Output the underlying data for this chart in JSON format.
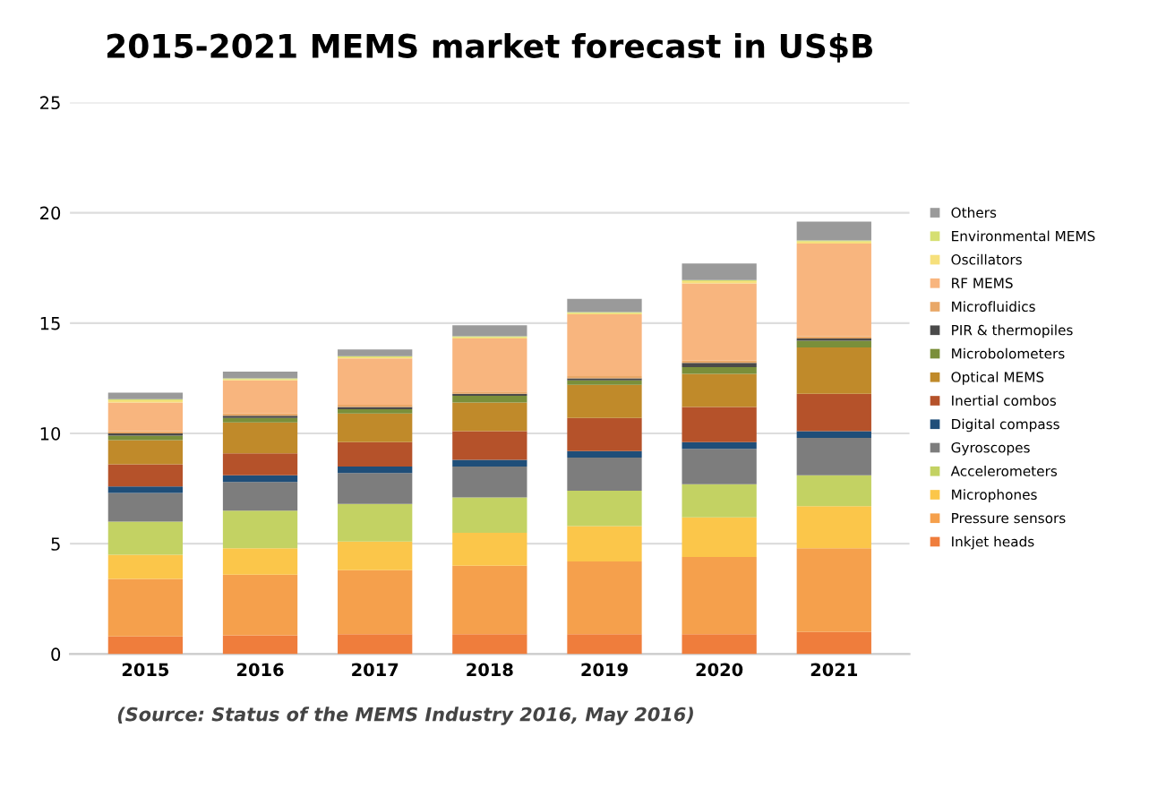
{
  "chart_data": {
    "type": "bar",
    "stacked": true,
    "title": "2015-2021 MEMS market forecast in US$B",
    "categories": [
      "2015",
      "2016",
      "2017",
      "2018",
      "2019",
      "2020",
      "2021"
    ],
    "series": [
      {
        "name": "Inkjet heads",
        "color": "#ef7d3c",
        "values": [
          0.8,
          0.85,
          0.9,
          0.9,
          0.9,
          0.9,
          1.0
        ]
      },
      {
        "name": "Pressure sensors",
        "color": "#f5a04c",
        "values": [
          2.6,
          2.75,
          2.9,
          3.1,
          3.3,
          3.5,
          3.8
        ]
      },
      {
        "name": "Microphones",
        "color": "#fbc64a",
        "values": [
          1.1,
          1.2,
          1.3,
          1.5,
          1.6,
          1.8,
          1.9
        ]
      },
      {
        "name": "Accelerometers",
        "color": "#c3d263",
        "values": [
          1.5,
          1.7,
          1.7,
          1.6,
          1.6,
          1.5,
          1.4
        ]
      },
      {
        "name": "Gyroscopes",
        "color": "#7d7d7d",
        "values": [
          1.3,
          1.3,
          1.4,
          1.4,
          1.5,
          1.6,
          1.7
        ]
      },
      {
        "name": "Digital compass",
        "color": "#1f4e79",
        "values": [
          0.3,
          0.3,
          0.3,
          0.3,
          0.3,
          0.3,
          0.3
        ]
      },
      {
        "name": "Inertial combos",
        "color": "#b5522a",
        "values": [
          1.0,
          1.0,
          1.1,
          1.3,
          1.5,
          1.6,
          1.7
        ]
      },
      {
        "name": "Optical MEMS",
        "color": "#c08a2a",
        "values": [
          1.1,
          1.4,
          1.3,
          1.3,
          1.5,
          1.5,
          2.1
        ]
      },
      {
        "name": "Microbolometers",
        "color": "#7a8f3a",
        "values": [
          0.2,
          0.2,
          0.2,
          0.3,
          0.2,
          0.3,
          0.3
        ]
      },
      {
        "name": "PIR & thermopiles",
        "color": "#4a4a4a",
        "values": [
          0.1,
          0.1,
          0.1,
          0.1,
          0.1,
          0.2,
          0.1
        ]
      },
      {
        "name": "Microfluidics",
        "color": "#e9a868",
        "values": [
          0.1,
          0.1,
          0.1,
          0.1,
          0.1,
          0.1,
          0.1
        ]
      },
      {
        "name": "RF MEMS",
        "color": "#f8b57e",
        "values": [
          1.3,
          1.5,
          2.1,
          2.4,
          2.8,
          3.5,
          4.2
        ]
      },
      {
        "name": "Oscillators",
        "color": "#f6e07c",
        "values": [
          0.1,
          0.05,
          0.05,
          0.05,
          0.05,
          0.1,
          0.1
        ]
      },
      {
        "name": "Environmental MEMS",
        "color": "#d6df72",
        "values": [
          0.05,
          0.05,
          0.05,
          0.05,
          0.05,
          0.05,
          0.05
        ]
      },
      {
        "name": "Others",
        "color": "#9a9a9a",
        "values": [
          0.3,
          0.3,
          0.3,
          0.5,
          0.6,
          0.75,
          0.85
        ]
      }
    ],
    "ylim": [
      0,
      25
    ],
    "yticks": [
      0,
      5,
      10,
      15,
      20,
      25
    ],
    "grid": "y",
    "legend": "right",
    "annotations": [
      "(Source: Status of the MEMS Industry 2016, May 2016)"
    ]
  }
}
